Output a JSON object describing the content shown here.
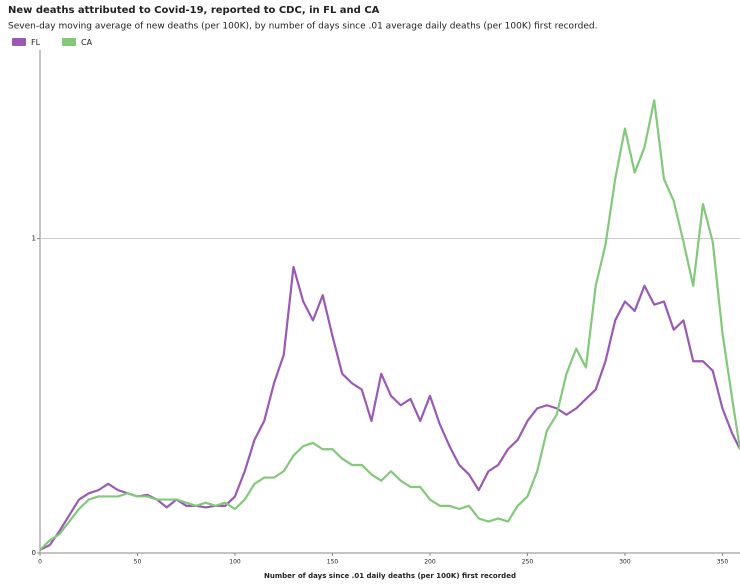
{
  "chart_data": {
    "type": "line",
    "title": "New deaths attributed to Covid-19, reported to CDC, in FL and CA",
    "subtitle": "Seven-day moving average of new deaths (per 100K), by number of days since .01 average daily deaths (per 100K) first recorded.",
    "x_label": "Number of days since .01 daily deaths (per 100K) first recorded",
    "x": [
      0,
      5,
      10,
      15,
      20,
      25,
      30,
      35,
      40,
      45,
      50,
      55,
      60,
      65,
      70,
      75,
      80,
      85,
      90,
      95,
      100,
      105,
      110,
      115,
      120,
      125,
      130,
      135,
      140,
      145,
      150,
      155,
      160,
      165,
      170,
      175,
      180,
      185,
      190,
      195,
      200,
      205,
      210,
      215,
      220,
      225,
      230,
      235,
      240,
      245,
      250,
      255,
      260,
      265,
      270,
      275,
      280,
      285,
      290,
      295,
      300,
      305,
      310,
      315,
      320,
      325,
      330,
      335,
      340,
      345,
      350,
      355,
      359
    ],
    "series": [
      {
        "name": "FL",
        "color": "#9b59b6",
        "values": [
          0.01,
          0.025,
          0.07,
          0.12,
          0.17,
          0.19,
          0.2,
          0.22,
          0.2,
          0.19,
          0.18,
          0.185,
          0.17,
          0.145,
          0.17,
          0.15,
          0.15,
          0.145,
          0.15,
          0.15,
          0.18,
          0.26,
          0.36,
          0.42,
          0.54,
          0.63,
          0.91,
          0.8,
          0.74,
          0.82,
          0.69,
          0.57,
          0.54,
          0.52,
          0.42,
          0.57,
          0.5,
          0.47,
          0.49,
          0.42,
          0.5,
          0.41,
          0.34,
          0.28,
          0.25,
          0.2,
          0.26,
          0.28,
          0.33,
          0.36,
          0.42,
          0.46,
          0.47,
          0.46,
          0.44,
          0.46,
          0.49,
          0.52,
          0.61,
          0.74,
          0.8,
          0.77,
          0.85,
          0.79,
          0.8,
          0.71,
          0.74,
          0.61,
          0.61,
          0.58,
          0.46,
          0.38,
          0.33
        ]
      },
      {
        "name": "CA",
        "color": "#82c97a",
        "values": [
          0.01,
          0.04,
          0.06,
          0.1,
          0.14,
          0.17,
          0.18,
          0.18,
          0.18,
          0.19,
          0.18,
          0.18,
          0.17,
          0.17,
          0.17,
          0.16,
          0.15,
          0.16,
          0.15,
          0.16,
          0.14,
          0.17,
          0.22,
          0.24,
          0.24,
          0.26,
          0.31,
          0.34,
          0.35,
          0.33,
          0.33,
          0.3,
          0.28,
          0.28,
          0.25,
          0.23,
          0.26,
          0.23,
          0.21,
          0.21,
          0.17,
          0.15,
          0.15,
          0.14,
          0.15,
          0.11,
          0.1,
          0.11,
          0.1,
          0.15,
          0.18,
          0.26,
          0.39,
          0.44,
          0.57,
          0.65,
          0.59,
          0.85,
          0.98,
          1.19,
          1.35,
          1.21,
          1.29,
          1.44,
          1.19,
          1.12,
          0.99,
          0.85,
          1.11,
          0.99,
          0.7,
          0.49,
          0.33
        ]
      }
    ],
    "xlim": [
      0,
      359
    ],
    "xticks": [
      0,
      50,
      100,
      150,
      200,
      250,
      300,
      350
    ],
    "ylim": [
      0,
      1.6
    ],
    "yticks": [
      0,
      1
    ],
    "grid": true,
    "legend": "top-left"
  }
}
